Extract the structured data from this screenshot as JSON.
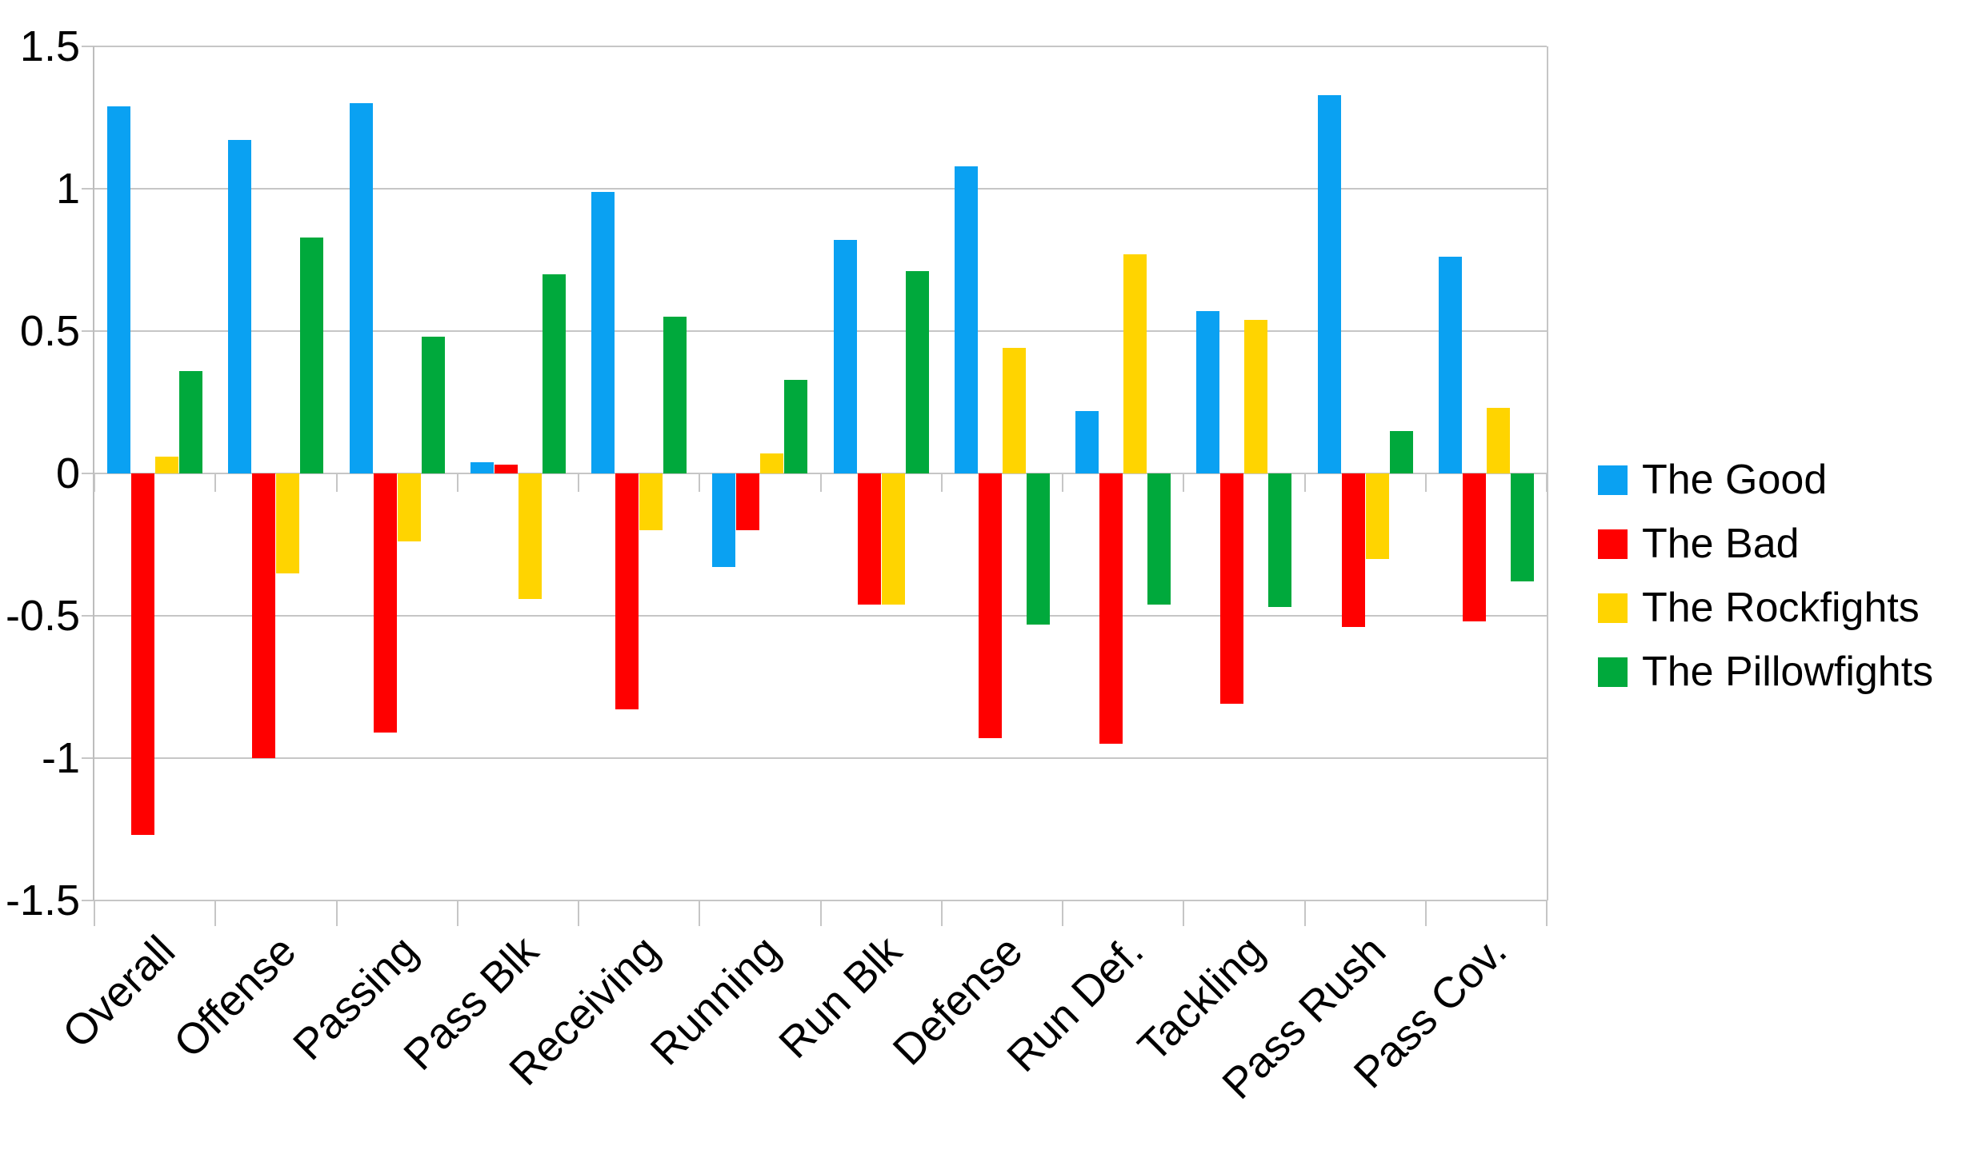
{
  "chart_data": {
    "type": "bar",
    "title": "",
    "xlabel": "",
    "ylabel": "",
    "categories": [
      "Overall",
      "Offense",
      "Passing",
      "Pass Blk",
      "Receiving",
      "Running",
      "Run Blk",
      "Defense",
      "Run Def.",
      "Tackling",
      "Pass Rush",
      "Pass Cov."
    ],
    "series": [
      {
        "name": "The Good",
        "color": "#0AA1F2",
        "values": [
          1.29,
          1.17,
          1.3,
          0.04,
          0.99,
          -0.33,
          0.82,
          1.08,
          0.22,
          0.57,
          1.33,
          0.76
        ]
      },
      {
        "name": "The Bad",
        "color": "#FF0000",
        "values": [
          -1.27,
          -1.0,
          -0.91,
          0.03,
          -0.83,
          -0.2,
          -0.46,
          -0.93,
          -0.95,
          -0.81,
          -0.54,
          -0.52
        ]
      },
      {
        "name": "The Rockfights",
        "color": "#FFD400",
        "values": [
          0.06,
          -0.35,
          -0.24,
          -0.44,
          -0.2,
          0.07,
          -0.46,
          0.44,
          0.77,
          0.54,
          -0.3,
          0.23
        ]
      },
      {
        "name": "The Pillowfights",
        "color": "#00A93C",
        "values": [
          0.36,
          0.83,
          0.48,
          0.7,
          0.55,
          0.33,
          0.71,
          -0.53,
          -0.46,
          -0.47,
          0.15,
          -0.38
        ]
      }
    ],
    "ylim": [
      -1.5,
      1.5
    ],
    "ytick_step": 0.5,
    "ytick_labels": [
      "1.5",
      "1",
      "0.5",
      "0",
      "-0.5",
      "-1",
      "-1.5"
    ],
    "grid": true,
    "legend_position": "right"
  },
  "colors": {
    "grid": "#C6C6C6",
    "axis": "#BDBDBD",
    "text": "#000000",
    "background": "#FFFFFF"
  }
}
